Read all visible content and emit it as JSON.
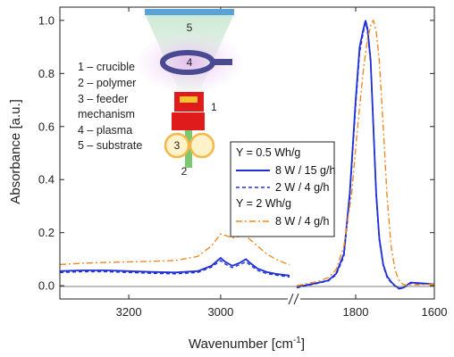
{
  "chart_data": {
    "type": "line",
    "xlabel": "Wavenumber [cm",
    "xlabel_sup": "-1",
    "xlabel_end": "]",
    "ylabel": "Absorbance [a.u.]",
    "ylim": [
      -0.05,
      1.05
    ],
    "yticks": [
      "0.0",
      "0.2",
      "0.4",
      "0.6",
      "0.8",
      "1.0"
    ],
    "x_segments": [
      {
        "range": [
          3350,
          2850
        ],
        "ticks": [
          "3200",
          "3000"
        ]
      },
      {
        "range": [
          1950,
          1600
        ],
        "ticks": [
          "1800",
          "1600"
        ]
      }
    ],
    "axis_break": "//",
    "legend": {
      "groups": [
        {
          "header": "Y = 0.5 Wh/g",
          "entries": [
            {
              "label": "8 W / 15 g/h",
              "series": 0
            },
            {
              "label": "2 W / 4 g/h",
              "series": 1
            }
          ]
        },
        {
          "header": "Y = 2 Wh/g",
          "entries": [
            {
              "label": "8 W / 4 g/h",
              "series": 2
            }
          ]
        }
      ]
    },
    "series": [
      {
        "color": "#1f2fd6",
        "dash": "solid",
        "segments": [
          [
            [
              3350,
              0.055
            ],
            [
              3300,
              0.058
            ],
            [
              3250,
              0.058
            ],
            [
              3200,
              0.055
            ],
            [
              3150,
              0.052
            ],
            [
              3100,
              0.05
            ],
            [
              3050,
              0.055
            ],
            [
              3020,
              0.075
            ],
            [
              3000,
              0.105
            ],
            [
              2990,
              0.09
            ],
            [
              2975,
              0.075
            ],
            [
              2960,
              0.085
            ],
            [
              2945,
              0.1
            ],
            [
              2935,
              0.085
            ],
            [
              2920,
              0.065
            ],
            [
              2900,
              0.052
            ],
            [
              2880,
              0.045
            ],
            [
              2860,
              0.04
            ],
            [
              2850,
              0.038
            ]
          ],
          [
            [
              1950,
              -0.005
            ],
            [
              1900,
              0.01
            ],
            [
              1870,
              0.02
            ],
            [
              1850,
              0.045
            ],
            [
              1830,
              0.12
            ],
            [
              1815,
              0.35
            ],
            [
              1800,
              0.7
            ],
            [
              1790,
              0.9
            ],
            [
              1780,
              0.97
            ],
            [
              1775,
              1.0
            ],
            [
              1770,
              0.97
            ],
            [
              1762,
              0.85
            ],
            [
              1755,
              0.6
            ],
            [
              1748,
              0.35
            ],
            [
              1740,
              0.18
            ],
            [
              1730,
              0.08
            ],
            [
              1720,
              0.035
            ],
            [
              1710,
              0.015
            ],
            [
              1700,
              0.0
            ],
            [
              1690,
              -0.01
            ],
            [
              1680,
              -0.008
            ],
            [
              1660,
              0.012
            ],
            [
              1640,
              0.01
            ],
            [
              1620,
              0.008
            ],
            [
              1600,
              0.005
            ]
          ]
        ]
      },
      {
        "color": "#1f2fd6",
        "dash": "dashed",
        "segments": [
          [
            [
              3350,
              0.05
            ],
            [
              3300,
              0.053
            ],
            [
              3250,
              0.053
            ],
            [
              3200,
              0.05
            ],
            [
              3150,
              0.047
            ],
            [
              3100,
              0.045
            ],
            [
              3050,
              0.05
            ],
            [
              3020,
              0.07
            ],
            [
              3000,
              0.095
            ],
            [
              2990,
              0.082
            ],
            [
              2975,
              0.068
            ],
            [
              2960,
              0.078
            ],
            [
              2945,
              0.09
            ],
            [
              2935,
              0.077
            ],
            [
              2920,
              0.058
            ],
            [
              2900,
              0.046
            ],
            [
              2880,
              0.04
            ],
            [
              2860,
              0.035
            ],
            [
              2850,
              0.033
            ]
          ],
          [
            [
              1950,
              -0.008
            ],
            [
              1900,
              0.008
            ],
            [
              1870,
              0.018
            ],
            [
              1850,
              0.04
            ],
            [
              1830,
              0.11
            ],
            [
              1815,
              0.33
            ],
            [
              1800,
              0.68
            ],
            [
              1790,
              0.88
            ],
            [
              1780,
              0.96
            ],
            [
              1775,
              0.99
            ],
            [
              1770,
              0.96
            ],
            [
              1762,
              0.84
            ],
            [
              1755,
              0.6
            ],
            [
              1748,
              0.34
            ],
            [
              1740,
              0.17
            ],
            [
              1730,
              0.075
            ],
            [
              1720,
              0.03
            ],
            [
              1710,
              0.012
            ],
            [
              1700,
              -0.002
            ],
            [
              1690,
              -0.012
            ],
            [
              1680,
              -0.01
            ],
            [
              1660,
              0.01
            ],
            [
              1640,
              0.008
            ],
            [
              1620,
              0.006
            ],
            [
              1600,
              0.004
            ]
          ]
        ]
      },
      {
        "color": "#f08a1e",
        "dash": "dashdot",
        "segments": [
          [
            [
              3350,
              0.08
            ],
            [
              3300,
              0.085
            ],
            [
              3250,
              0.088
            ],
            [
              3200,
              0.09
            ],
            [
              3150,
              0.092
            ],
            [
              3100,
              0.095
            ],
            [
              3050,
              0.11
            ],
            [
              3020,
              0.15
            ],
            [
              3000,
              0.195
            ],
            [
              2990,
              0.19
            ],
            [
              2975,
              0.18
            ],
            [
              2960,
              0.185
            ],
            [
              2950,
              0.195
            ],
            [
              2940,
              0.18
            ],
            [
              2920,
              0.15
            ],
            [
              2900,
              0.12
            ],
            [
              2880,
              0.1
            ],
            [
              2860,
              0.085
            ],
            [
              2850,
              0.08
            ]
          ],
          [
            [
              1950,
              0.0
            ],
            [
              1900,
              0.015
            ],
            [
              1870,
              0.03
            ],
            [
              1850,
              0.06
            ],
            [
              1830,
              0.15
            ],
            [
              1810,
              0.35
            ],
            [
              1795,
              0.6
            ],
            [
              1780,
              0.82
            ],
            [
              1770,
              0.93
            ],
            [
              1760,
              0.99
            ],
            [
              1755,
              1.0
            ],
            [
              1748,
              0.96
            ],
            [
              1740,
              0.85
            ],
            [
              1730,
              0.6
            ],
            [
              1720,
              0.33
            ],
            [
              1710,
              0.15
            ],
            [
              1700,
              0.06
            ],
            [
              1690,
              0.02
            ],
            [
              1680,
              0.005
            ],
            [
              1670,
              0.002
            ],
            [
              1650,
              0.003
            ],
            [
              1600,
              0.005
            ]
          ]
        ]
      }
    ]
  },
  "inset": {
    "labels": [
      "1 – crucible",
      "2 – polymer",
      "3 – feeder",
      "mechanism",
      "4 – plasma",
      "5 – substrate"
    ],
    "numbers": [
      "5",
      "4",
      "1",
      "3",
      "2"
    ]
  }
}
